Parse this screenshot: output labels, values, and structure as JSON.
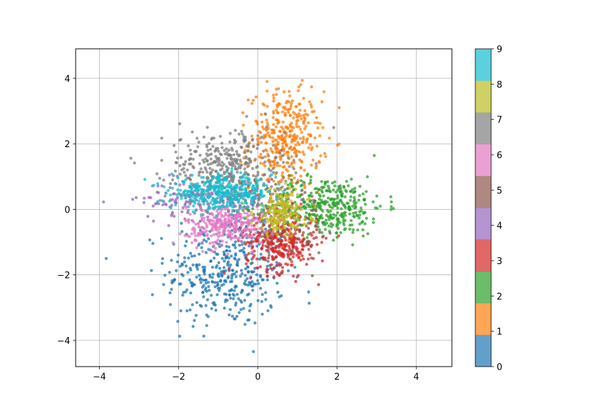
{
  "chart_data": {
    "type": "scatter",
    "title": "",
    "xlabel": "",
    "ylabel": "",
    "xlim": [
      -4.6,
      4.9
    ],
    "ylim": [
      -4.8,
      4.9
    ],
    "x_ticks": [
      -4,
      -2,
      0,
      2,
      4
    ],
    "y_ticks": [
      -4,
      -2,
      0,
      2,
      4
    ],
    "x_tick_labels": [
      "−4",
      "−2",
      "0",
      "2",
      "4"
    ],
    "y_tick_labels": [
      "−4",
      "−2",
      "0",
      "2",
      "4"
    ],
    "grid": true,
    "colorbar": {
      "min": 0,
      "max": 9,
      "ticks": [
        "0",
        "1",
        "2",
        "3",
        "4",
        "5",
        "6",
        "7",
        "8",
        "9"
      ],
      "colors": [
        "#1f77b4",
        "#ff7f0e",
        "#2ca02c",
        "#d62728",
        "#9467bd",
        "#8c564b",
        "#e377c2",
        "#7f7f7f",
        "#bcbd22",
        "#17becf"
      ]
    },
    "clusters": [
      {
        "label": 0,
        "center": [
          -0.8,
          -1.9
        ],
        "spread": [
          0.75,
          0.85
        ],
        "count": 420
      },
      {
        "label": 1,
        "center": [
          0.7,
          2.1
        ],
        "spread": [
          0.45,
          0.75
        ],
        "count": 380
      },
      {
        "label": 2,
        "center": [
          1.7,
          0.1
        ],
        "spread": [
          0.75,
          0.45
        ],
        "count": 400
      },
      {
        "label": 3,
        "center": [
          0.6,
          -1.0
        ],
        "spread": [
          0.45,
          0.45
        ],
        "count": 330
      },
      {
        "label": 4,
        "center": [
          -1.2,
          0.3
        ],
        "spread": [
          0.9,
          0.3
        ],
        "count": 200
      },
      {
        "label": 5,
        "center": [
          0.5,
          -0.3
        ],
        "spread": [
          0.6,
          0.7
        ],
        "count": 120
      },
      {
        "label": 6,
        "center": [
          -0.8,
          -0.5
        ],
        "spread": [
          0.5,
          0.3
        ],
        "count": 300
      },
      {
        "label": 7,
        "center": [
          -0.8,
          1.3
        ],
        "spread": [
          0.75,
          0.55
        ],
        "count": 370
      },
      {
        "label": 8,
        "center": [
          0.6,
          -0.1
        ],
        "spread": [
          0.35,
          0.35
        ],
        "count": 200
      },
      {
        "label": 9,
        "center": [
          -0.9,
          0.5
        ],
        "spread": [
          0.65,
          0.25
        ],
        "count": 380
      }
    ]
  }
}
